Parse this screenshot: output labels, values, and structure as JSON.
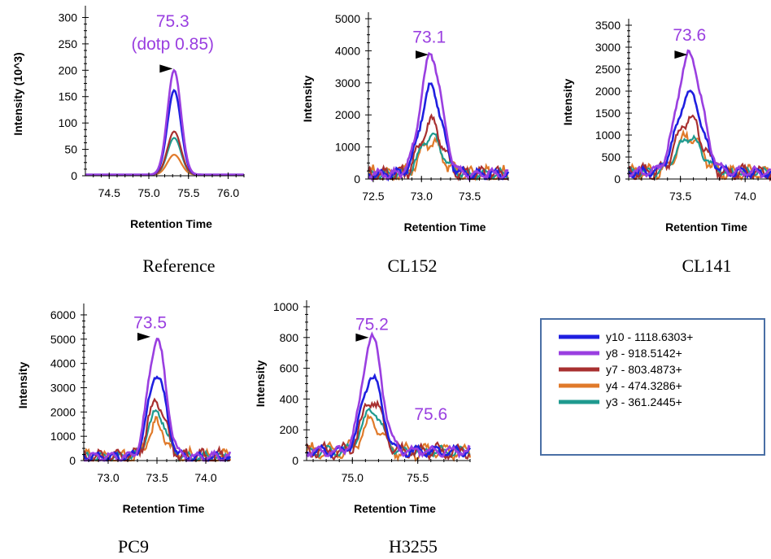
{
  "colors": {
    "y10": "#1f1fe0",
    "y8": "#9a3fe0",
    "y7": "#a83030",
    "y4": "#e07a2a",
    "y3": "#1f9a8f",
    "annotation": "#9a3fe0",
    "legend_border": "#4a6fa5"
  },
  "legend": [
    {
      "key": "y10",
      "label": "y10 - 1118.6303+"
    },
    {
      "key": "y8",
      "label": "y8 - 918.5142+"
    },
    {
      "key": "y7",
      "label": "y7 - 803.4873+"
    },
    {
      "key": "y4",
      "label": "y4 - 474.3286+"
    },
    {
      "key": "y3",
      "label": "y3 - 361.2445+"
    }
  ],
  "chart_data": [
    {
      "type": "line",
      "caption": "Reference",
      "xlabel": "Retention Time",
      "ylabel": "Intensity (10^3)",
      "xlim": [
        74.2,
        76.2
      ],
      "ylim": [
        0,
        310
      ],
      "xticks": [
        74.5,
        75.0,
        75.5,
        76.0
      ],
      "xtick_labels": [
        "74.5",
        "75.0",
        "75.5",
        "76.0"
      ],
      "yticks": [
        0,
        50,
        100,
        150,
        200,
        250,
        300
      ],
      "ytick_labels": [
        "0",
        "50",
        "100",
        "150",
        "200",
        "250",
        "300"
      ],
      "annotations": [
        "75.3",
        "(dotp 0.85)"
      ],
      "annotation_at": [
        75.3,
        230
      ],
      "marker_at": [
        75.26,
        203
      ],
      "peaks": {
        "center": 75.32,
        "sigma": 0.085,
        "base": 2,
        "noise": 0,
        "heights": {
          "y8": 200,
          "y10": 162,
          "y7": 84,
          "y3": 72,
          "y4": 40
        }
      }
    },
    {
      "type": "line",
      "caption": "CL152",
      "xlabel": "Retention Time",
      "ylabel": "Intensity",
      "xlim": [
        72.45,
        73.9
      ],
      "ylim": [
        0,
        5000
      ],
      "xticks": [
        72.5,
        73.0,
        73.5
      ],
      "xtick_labels": [
        "72.5",
        "73.0",
        "73.5"
      ],
      "yticks": [
        0,
        1000,
        2000,
        3000,
        4000,
        5000
      ],
      "ytick_labels": [
        "0",
        "1000",
        "2000",
        "3000",
        "4000",
        "5000"
      ],
      "annotations": [
        "73.1"
      ],
      "annotation_at": [
        73.08,
        4250
      ],
      "marker_at": [
        73.04,
        3880
      ],
      "peaks": {
        "center": 73.1,
        "sigma": 0.11,
        "base": 150,
        "noise": 1,
        "heights": {
          "y8": 3850,
          "y10": 2850,
          "y7": 1780,
          "y3": 1350,
          "y4": 1200
        }
      }
    },
    {
      "type": "line",
      "caption": "CL141",
      "xlabel": "Retention Time",
      "ylabel": "Intensity",
      "xlim": [
        73.1,
        74.2
      ],
      "ylim": [
        0,
        3500
      ],
      "xticks": [
        73.5,
        74.0
      ],
      "xtick_labels": [
        "73.5",
        "74.0"
      ],
      "yticks": [
        0,
        500,
        1000,
        1500,
        2000,
        2500,
        3000,
        3500
      ],
      "ytick_labels": [
        "0",
        "500",
        "1000",
        "1500",
        "2000",
        "2500",
        "3000",
        "3500"
      ],
      "annotations": [
        "73.6"
      ],
      "annotation_at": [
        73.57,
        3150
      ],
      "marker_at": [
        73.53,
        2830
      ],
      "peaks": {
        "center": 73.57,
        "sigma": 0.095,
        "base": 150,
        "noise": 1,
        "heights": {
          "y8": 2820,
          "y10": 1950,
          "y7": 1380,
          "y3": 950,
          "y4": 1000
        }
      }
    },
    {
      "type": "line",
      "caption": "PC9",
      "xlabel": "Retention Time",
      "ylabel": "Intensity",
      "xlim": [
        72.75,
        74.25
      ],
      "ylim": [
        0,
        6200
      ],
      "xticks": [
        73.0,
        73.5,
        74.0
      ],
      "xtick_labels": [
        "73.0",
        "73.5",
        "74.0"
      ],
      "yticks": [
        0,
        1000,
        2000,
        3000,
        4000,
        5000,
        6000
      ],
      "ytick_labels": [
        "0",
        "1000",
        "2000",
        "3000",
        "4000",
        "5000",
        "6000"
      ],
      "annotations": [
        "73.5"
      ],
      "annotation_at": [
        73.43,
        5450
      ],
      "marker_at": [
        73.4,
        5100
      ],
      "peaks": {
        "center": 73.5,
        "sigma": 0.09,
        "base": 150,
        "noise": 1,
        "heights": {
          "y8": 5000,
          "y10": 3600,
          "y7": 2450,
          "y3": 2000,
          "y4": 1450
        }
      }
    },
    {
      "type": "line",
      "caption": "H3255",
      "xlabel": "Retention Time",
      "ylabel": "Intensity",
      "xlim": [
        74.65,
        75.9
      ],
      "ylim": [
        0,
        1000
      ],
      "xticks": [
        75.0,
        75.5
      ],
      "xtick_labels": [
        "75.0",
        "75.5"
      ],
      "yticks": [
        0,
        200,
        400,
        600,
        800,
        1000
      ],
      "ytick_labels": [
        "0",
        "200",
        "400",
        "600",
        "800",
        "1000"
      ],
      "annotations": [
        "75.2",
        "75.6"
      ],
      "annotation_at": [
        75.15,
        850
      ],
      "annotation2_at": [
        75.6,
        265
      ],
      "marker_at": [
        75.1,
        800
      ],
      "peaks": {
        "center": 75.15,
        "sigma": 0.075,
        "base": 60,
        "noise": 1,
        "heights": {
          "y8": 800,
          "y10": 550,
          "y7": 400,
          "y3": 330,
          "y4": 250
        }
      }
    }
  ]
}
